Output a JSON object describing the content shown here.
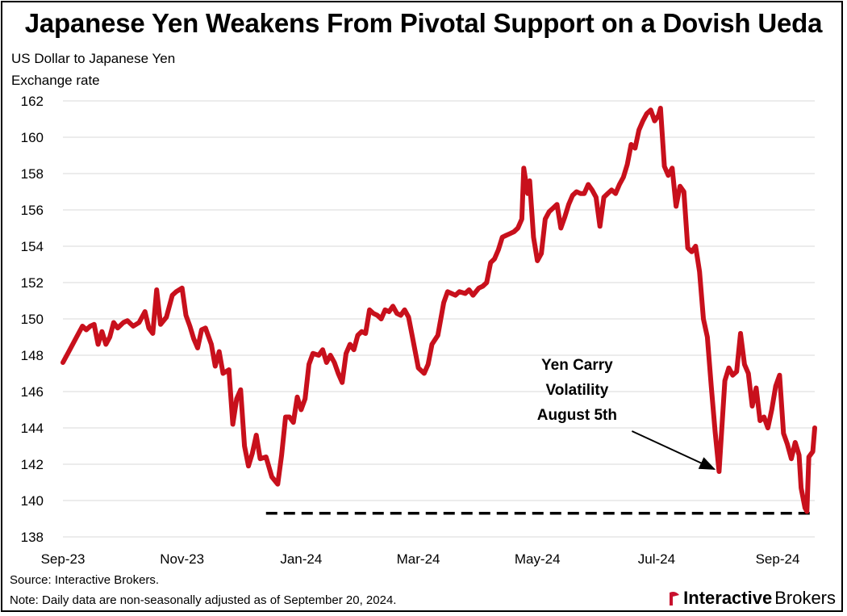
{
  "header": {
    "title": "Japanese Yen Weakens From Pivotal Support on a Dovish Ueda",
    "ylabel_line1": "US Dollar to Japanese Yen",
    "ylabel_line2": "Exchange rate"
  },
  "footer": {
    "source": "Source: Interactive Brokers.",
    "note": "Note: Daily data are non-seasonally adjusted as of September 20, 2024.",
    "brand_part1": "Interactive",
    "brand_part2": "Brokers",
    "brand_color": "#c8102e"
  },
  "chart_data": {
    "type": "line",
    "title": "Japanese Yen Weakens From Pivotal Support on a Dovish Ueda",
    "ylabel": "US Dollar to Japanese Yen Exchange rate",
    "xlabel": "",
    "ylim": [
      138,
      162
    ],
    "xlim": [
      "2023-09-01",
      "2024-09-20"
    ],
    "yticks": [
      138,
      140,
      142,
      144,
      146,
      148,
      150,
      152,
      154,
      156,
      158,
      160,
      162
    ],
    "xtick_labels": [
      {
        "label": "Sep-23",
        "date": "2023-09-01"
      },
      {
        "label": "Nov-23",
        "date": "2023-11-01"
      },
      {
        "label": "Jan-24",
        "date": "2024-01-01"
      },
      {
        "label": "Mar-24",
        "date": "2024-03-01"
      },
      {
        "label": "May-24",
        "date": "2024-05-01"
      },
      {
        "label": "Jul-24",
        "date": "2024-07-01"
      },
      {
        "label": "Sep-24",
        "date": "2024-09-01"
      }
    ],
    "grid": true,
    "series": [
      {
        "color": "#c8101c",
        "points": [
          [
            "2023-09-01",
            147.6
          ],
          [
            "2023-09-04",
            148.2
          ],
          [
            "2023-09-06",
            148.6
          ],
          [
            "2023-09-08",
            149.0
          ],
          [
            "2023-09-11",
            149.6
          ],
          [
            "2023-09-13",
            149.4
          ],
          [
            "2023-09-15",
            149.6
          ],
          [
            "2023-09-17",
            149.7
          ],
          [
            "2023-09-19",
            148.6
          ],
          [
            "2023-09-21",
            149.3
          ],
          [
            "2023-09-23",
            148.6
          ],
          [
            "2023-09-25",
            149.0
          ],
          [
            "2023-09-27",
            149.8
          ],
          [
            "2023-09-29",
            149.5
          ],
          [
            "2023-10-02",
            149.8
          ],
          [
            "2023-10-04",
            149.9
          ],
          [
            "2023-10-07",
            149.6
          ],
          [
            "2023-10-10",
            149.8
          ],
          [
            "2023-10-13",
            150.4
          ],
          [
            "2023-10-15",
            149.5
          ],
          [
            "2023-10-17",
            149.2
          ],
          [
            "2023-10-19",
            151.6
          ],
          [
            "2023-10-21",
            149.7
          ],
          [
            "2023-10-24",
            150.1
          ],
          [
            "2023-10-27",
            151.3
          ],
          [
            "2023-10-29",
            151.5
          ],
          [
            "2023-11-01",
            151.7
          ],
          [
            "2023-11-03",
            150.2
          ],
          [
            "2023-11-05",
            149.6
          ],
          [
            "2023-11-07",
            148.9
          ],
          [
            "2023-11-09",
            148.4
          ],
          [
            "2023-11-11",
            149.4
          ],
          [
            "2023-11-13",
            149.5
          ],
          [
            "2023-11-16",
            148.6
          ],
          [
            "2023-11-18",
            147.4
          ],
          [
            "2023-11-20",
            148.2
          ],
          [
            "2023-11-22",
            147.0
          ],
          [
            "2023-11-25",
            147.2
          ],
          [
            "2023-11-27",
            144.2
          ],
          [
            "2023-11-29",
            145.6
          ],
          [
            "2023-12-01",
            146.1
          ],
          [
            "2023-12-03",
            143.0
          ],
          [
            "2023-12-05",
            141.9
          ],
          [
            "2023-12-07",
            142.6
          ],
          [
            "2023-12-09",
            143.6
          ],
          [
            "2023-12-11",
            142.3
          ],
          [
            "2023-12-14",
            142.4
          ],
          [
            "2023-12-17",
            141.3
          ],
          [
            "2023-12-20",
            140.9
          ],
          [
            "2023-12-22",
            142.5
          ],
          [
            "2023-12-24",
            144.6
          ],
          [
            "2023-12-26",
            144.6
          ],
          [
            "2023-12-28",
            144.3
          ],
          [
            "2023-12-30",
            145.7
          ],
          [
            "2024-01-01",
            145.0
          ],
          [
            "2024-01-03",
            145.6
          ],
          [
            "2024-01-05",
            147.5
          ],
          [
            "2024-01-07",
            148.1
          ],
          [
            "2024-01-10",
            148.0
          ],
          [
            "2024-01-12",
            148.3
          ],
          [
            "2024-01-14",
            147.6
          ],
          [
            "2024-01-16",
            148.0
          ],
          [
            "2024-01-18",
            147.6
          ],
          [
            "2024-01-20",
            147.0
          ],
          [
            "2024-01-22",
            146.5
          ],
          [
            "2024-01-24",
            148.1
          ],
          [
            "2024-01-26",
            148.6
          ],
          [
            "2024-01-28",
            148.3
          ],
          [
            "2024-01-30",
            149.1
          ],
          [
            "2024-02-01",
            149.3
          ],
          [
            "2024-02-03",
            149.2
          ],
          [
            "2024-02-05",
            150.5
          ],
          [
            "2024-02-07",
            150.3
          ],
          [
            "2024-02-09",
            150.2
          ],
          [
            "2024-02-11",
            150.0
          ],
          [
            "2024-02-13",
            150.5
          ],
          [
            "2024-02-15",
            150.4
          ],
          [
            "2024-02-17",
            150.7
          ],
          [
            "2024-02-19",
            150.3
          ],
          [
            "2024-02-21",
            150.2
          ],
          [
            "2024-02-23",
            150.5
          ],
          [
            "2024-02-25",
            150.1
          ],
          [
            "2024-02-27",
            149.0
          ],
          [
            "2024-03-01",
            147.3
          ],
          [
            "2024-03-04",
            147.0
          ],
          [
            "2024-03-06",
            147.5
          ],
          [
            "2024-03-08",
            148.6
          ],
          [
            "2024-03-11",
            149.1
          ],
          [
            "2024-03-14",
            150.9
          ],
          [
            "2024-03-16",
            151.5
          ],
          [
            "2024-03-18",
            151.4
          ],
          [
            "2024-03-20",
            151.3
          ],
          [
            "2024-03-22",
            151.5
          ],
          [
            "2024-03-25",
            151.4
          ],
          [
            "2024-03-27",
            151.6
          ],
          [
            "2024-03-29",
            151.3
          ],
          [
            "2024-04-01",
            151.7
          ],
          [
            "2024-04-03",
            151.8
          ],
          [
            "2024-04-05",
            152.0
          ],
          [
            "2024-04-07",
            153.1
          ],
          [
            "2024-04-09",
            153.3
          ],
          [
            "2024-04-11",
            153.8
          ],
          [
            "2024-04-13",
            154.5
          ],
          [
            "2024-04-15",
            154.6
          ],
          [
            "2024-04-17",
            154.7
          ],
          [
            "2024-04-19",
            154.8
          ],
          [
            "2024-04-21",
            155.0
          ],
          [
            "2024-04-23",
            155.5
          ],
          [
            "2024-04-24",
            158.3
          ],
          [
            "2024-04-26",
            156.9
          ],
          [
            "2024-04-27",
            157.6
          ],
          [
            "2024-04-29",
            154.5
          ],
          [
            "2024-05-01",
            153.2
          ],
          [
            "2024-05-03",
            153.6
          ],
          [
            "2024-05-05",
            155.5
          ],
          [
            "2024-05-07",
            155.9
          ],
          [
            "2024-05-09",
            156.1
          ],
          [
            "2024-05-11",
            156.3
          ],
          [
            "2024-05-13",
            155.0
          ],
          [
            "2024-05-15",
            155.6
          ],
          [
            "2024-05-17",
            156.3
          ],
          [
            "2024-05-19",
            156.8
          ],
          [
            "2024-05-21",
            157.0
          ],
          [
            "2024-05-23",
            156.9
          ],
          [
            "2024-05-25",
            156.9
          ],
          [
            "2024-05-27",
            157.4
          ],
          [
            "2024-05-29",
            157.1
          ],
          [
            "2024-05-31",
            156.7
          ],
          [
            "2024-06-02",
            155.1
          ],
          [
            "2024-06-04",
            156.7
          ],
          [
            "2024-06-06",
            156.9
          ],
          [
            "2024-06-08",
            157.1
          ],
          [
            "2024-06-10",
            156.9
          ],
          [
            "2024-06-12",
            157.4
          ],
          [
            "2024-06-14",
            157.8
          ],
          [
            "2024-06-16",
            158.5
          ],
          [
            "2024-06-18",
            159.6
          ],
          [
            "2024-06-20",
            159.4
          ],
          [
            "2024-06-22",
            160.4
          ],
          [
            "2024-06-24",
            160.9
          ],
          [
            "2024-06-26",
            161.3
          ],
          [
            "2024-06-28",
            161.5
          ],
          [
            "2024-06-30",
            160.9
          ],
          [
            "2024-07-02",
            161.2
          ],
          [
            "2024-07-03",
            161.6
          ],
          [
            "2024-07-05",
            158.4
          ],
          [
            "2024-07-07",
            157.9
          ],
          [
            "2024-07-09",
            158.3
          ],
          [
            "2024-07-11",
            156.2
          ],
          [
            "2024-07-13",
            157.3
          ],
          [
            "2024-07-15",
            157.0
          ],
          [
            "2024-07-17",
            153.9
          ],
          [
            "2024-07-19",
            153.7
          ],
          [
            "2024-07-21",
            154.0
          ],
          [
            "2024-07-23",
            152.6
          ],
          [
            "2024-07-25",
            150.0
          ],
          [
            "2024-07-27",
            149.0
          ],
          [
            "2024-07-29",
            146.3
          ],
          [
            "2024-07-31",
            143.8
          ],
          [
            "2024-08-02",
            141.6
          ],
          [
            "2024-08-05",
            146.6
          ],
          [
            "2024-08-07",
            147.3
          ],
          [
            "2024-08-09",
            146.9
          ],
          [
            "2024-08-11",
            147.1
          ],
          [
            "2024-08-13",
            149.2
          ],
          [
            "2024-08-15",
            147.5
          ],
          [
            "2024-08-17",
            147.0
          ],
          [
            "2024-08-19",
            145.2
          ],
          [
            "2024-08-21",
            146.2
          ],
          [
            "2024-08-23",
            144.4
          ],
          [
            "2024-08-25",
            144.6
          ],
          [
            "2024-08-27",
            144.0
          ],
          [
            "2024-08-29",
            145.0
          ],
          [
            "2024-08-31",
            146.3
          ],
          [
            "2024-09-02",
            146.9
          ],
          [
            "2024-09-04",
            143.7
          ],
          [
            "2024-09-06",
            143.1
          ],
          [
            "2024-09-08",
            142.3
          ],
          [
            "2024-09-10",
            143.2
          ],
          [
            "2024-09-12",
            142.5
          ],
          [
            "2024-09-13",
            140.7
          ],
          [
            "2024-09-15",
            139.6
          ],
          [
            "2024-09-16",
            139.4
          ],
          [
            "2024-09-17",
            142.4
          ],
          [
            "2024-09-19",
            142.7
          ],
          [
            "2024-09-20",
            144.0
          ]
        ]
      }
    ],
    "support_line": {
      "y": 139.3,
      "start": "2023-12-14",
      "end": "2024-09-20",
      "style": "dashed",
      "color": "#000000"
    },
    "annotation": {
      "lines": [
        "Yen Carry",
        "Volatility",
        "August 5th"
      ],
      "arrow_to": [
        "2024-08-02",
        141.6
      ]
    }
  }
}
